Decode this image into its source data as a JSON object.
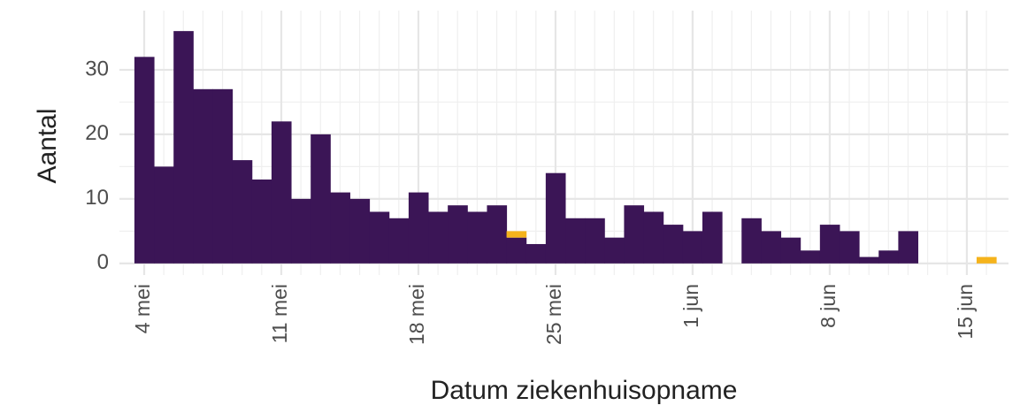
{
  "chart_data": {
    "type": "bar",
    "stacked": true,
    "x_label": "Datum ziekenhuisopname",
    "y_label": "Aantal",
    "categories": [
      "4 mei",
      null,
      null,
      null,
      null,
      null,
      null,
      "11 mei",
      null,
      null,
      null,
      null,
      null,
      null,
      "18 mei",
      null,
      null,
      null,
      null,
      null,
      null,
      "25 mei",
      null,
      null,
      null,
      null,
      null,
      null,
      "1 jun",
      null,
      null,
      null,
      null,
      null,
      null,
      "8 jun",
      null,
      null,
      null,
      null,
      null,
      null,
      "15 jun",
      null
    ],
    "series": [
      {
        "color": "#3b1556",
        "values": [
          32,
          15,
          36,
          27,
          27,
          16,
          13,
          22,
          10,
          20,
          11,
          10,
          8,
          7,
          11,
          8,
          9,
          8,
          9,
          4,
          3,
          14,
          7,
          7,
          4,
          9,
          8,
          6,
          5,
          8,
          0,
          7,
          5,
          4,
          2,
          6,
          5,
          1,
          2,
          5,
          0,
          0,
          0,
          0
        ]
      },
      {
        "color": "#f5b31c",
        "values": [
          0,
          0,
          0,
          0,
          0,
          0,
          0,
          0,
          0,
          0,
          0,
          0,
          0,
          0,
          0,
          0,
          0,
          0,
          0,
          1,
          0,
          0,
          0,
          0,
          0,
          0,
          0,
          0,
          0,
          0,
          0,
          0,
          0,
          0,
          0,
          0,
          0,
          0,
          0,
          0,
          0,
          0,
          0,
          1
        ]
      }
    ],
    "ylim": [
      -1.8,
      37.8
    ],
    "yticks": [
      0,
      10,
      20,
      30
    ],
    "grid": true
  }
}
